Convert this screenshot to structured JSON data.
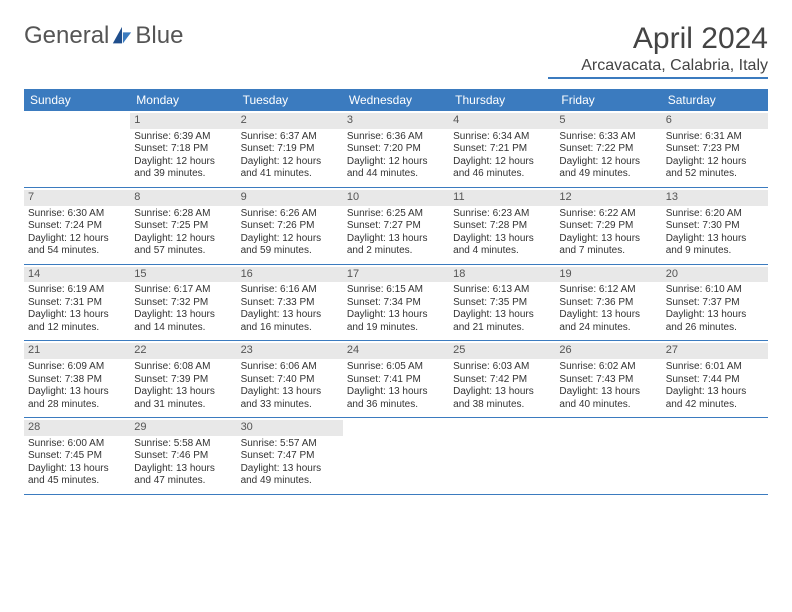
{
  "brand": {
    "name_part1": "General",
    "name_part2": "Blue"
  },
  "title": "April 2024",
  "location": "Arcavacata, Calabria, Italy",
  "colors": {
    "accent": "#3b7bbf",
    "header_bg": "#3b7bbf",
    "header_text": "#ffffff",
    "daynum_bg": "#e8e8e8",
    "text": "#333333",
    "background": "#ffffff"
  },
  "calendar": {
    "day_names": [
      "Sunday",
      "Monday",
      "Tuesday",
      "Wednesday",
      "Thursday",
      "Friday",
      "Saturday"
    ],
    "leading_blanks": 1,
    "days": [
      {
        "n": 1,
        "sunrise": "6:39 AM",
        "sunset": "7:18 PM",
        "daylight": "12 hours and 39 minutes."
      },
      {
        "n": 2,
        "sunrise": "6:37 AM",
        "sunset": "7:19 PM",
        "daylight": "12 hours and 41 minutes."
      },
      {
        "n": 3,
        "sunrise": "6:36 AM",
        "sunset": "7:20 PM",
        "daylight": "12 hours and 44 minutes."
      },
      {
        "n": 4,
        "sunrise": "6:34 AM",
        "sunset": "7:21 PM",
        "daylight": "12 hours and 46 minutes."
      },
      {
        "n": 5,
        "sunrise": "6:33 AM",
        "sunset": "7:22 PM",
        "daylight": "12 hours and 49 minutes."
      },
      {
        "n": 6,
        "sunrise": "6:31 AM",
        "sunset": "7:23 PM",
        "daylight": "12 hours and 52 minutes."
      },
      {
        "n": 7,
        "sunrise": "6:30 AM",
        "sunset": "7:24 PM",
        "daylight": "12 hours and 54 minutes."
      },
      {
        "n": 8,
        "sunrise": "6:28 AM",
        "sunset": "7:25 PM",
        "daylight": "12 hours and 57 minutes."
      },
      {
        "n": 9,
        "sunrise": "6:26 AM",
        "sunset": "7:26 PM",
        "daylight": "12 hours and 59 minutes."
      },
      {
        "n": 10,
        "sunrise": "6:25 AM",
        "sunset": "7:27 PM",
        "daylight": "13 hours and 2 minutes."
      },
      {
        "n": 11,
        "sunrise": "6:23 AM",
        "sunset": "7:28 PM",
        "daylight": "13 hours and 4 minutes."
      },
      {
        "n": 12,
        "sunrise": "6:22 AM",
        "sunset": "7:29 PM",
        "daylight": "13 hours and 7 minutes."
      },
      {
        "n": 13,
        "sunrise": "6:20 AM",
        "sunset": "7:30 PM",
        "daylight": "13 hours and 9 minutes."
      },
      {
        "n": 14,
        "sunrise": "6:19 AM",
        "sunset": "7:31 PM",
        "daylight": "13 hours and 12 minutes."
      },
      {
        "n": 15,
        "sunrise": "6:17 AM",
        "sunset": "7:32 PM",
        "daylight": "13 hours and 14 minutes."
      },
      {
        "n": 16,
        "sunrise": "6:16 AM",
        "sunset": "7:33 PM",
        "daylight": "13 hours and 16 minutes."
      },
      {
        "n": 17,
        "sunrise": "6:15 AM",
        "sunset": "7:34 PM",
        "daylight": "13 hours and 19 minutes."
      },
      {
        "n": 18,
        "sunrise": "6:13 AM",
        "sunset": "7:35 PM",
        "daylight": "13 hours and 21 minutes."
      },
      {
        "n": 19,
        "sunrise": "6:12 AM",
        "sunset": "7:36 PM",
        "daylight": "13 hours and 24 minutes."
      },
      {
        "n": 20,
        "sunrise": "6:10 AM",
        "sunset": "7:37 PM",
        "daylight": "13 hours and 26 minutes."
      },
      {
        "n": 21,
        "sunrise": "6:09 AM",
        "sunset": "7:38 PM",
        "daylight": "13 hours and 28 minutes."
      },
      {
        "n": 22,
        "sunrise": "6:08 AM",
        "sunset": "7:39 PM",
        "daylight": "13 hours and 31 minutes."
      },
      {
        "n": 23,
        "sunrise": "6:06 AM",
        "sunset": "7:40 PM",
        "daylight": "13 hours and 33 minutes."
      },
      {
        "n": 24,
        "sunrise": "6:05 AM",
        "sunset": "7:41 PM",
        "daylight": "13 hours and 36 minutes."
      },
      {
        "n": 25,
        "sunrise": "6:03 AM",
        "sunset": "7:42 PM",
        "daylight": "13 hours and 38 minutes."
      },
      {
        "n": 26,
        "sunrise": "6:02 AM",
        "sunset": "7:43 PM",
        "daylight": "13 hours and 40 minutes."
      },
      {
        "n": 27,
        "sunrise": "6:01 AM",
        "sunset": "7:44 PM",
        "daylight": "13 hours and 42 minutes."
      },
      {
        "n": 28,
        "sunrise": "6:00 AM",
        "sunset": "7:45 PM",
        "daylight": "13 hours and 45 minutes."
      },
      {
        "n": 29,
        "sunrise": "5:58 AM",
        "sunset": "7:46 PM",
        "daylight": "13 hours and 47 minutes."
      },
      {
        "n": 30,
        "sunrise": "5:57 AM",
        "sunset": "7:47 PM",
        "daylight": "13 hours and 49 minutes."
      }
    ],
    "labels": {
      "sunrise": "Sunrise:",
      "sunset": "Sunset:",
      "daylight": "Daylight:"
    }
  }
}
